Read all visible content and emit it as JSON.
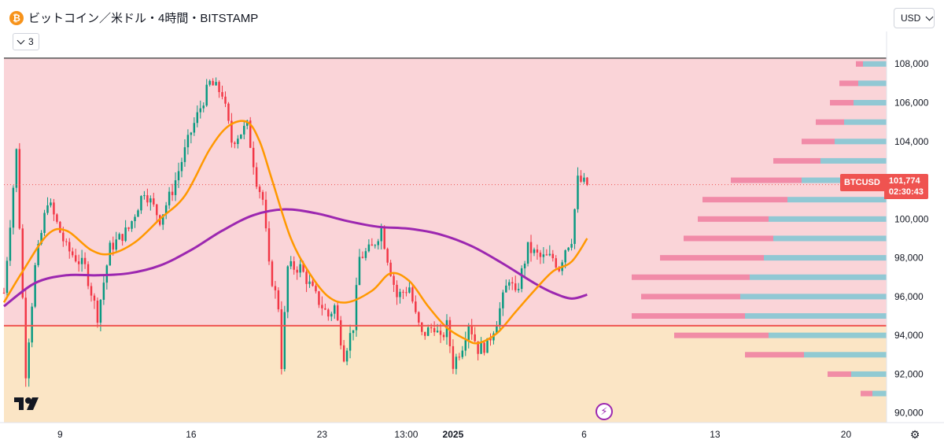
{
  "header": {
    "coin_glyph": "₿",
    "symbol_title": "ビットコイン／米ドル・4時間・BITSTAMP",
    "collapse_count": "3",
    "currency": "USD"
  },
  "price_tag": {
    "symbol": "BTCUSD",
    "price": "101,774",
    "countdown": "02:30:43"
  },
  "colors": {
    "up": "#089981",
    "down": "#f23645",
    "ema": "#ff9800",
    "ma": "#9c27b0",
    "resistance": "#ef5350",
    "zone_upper": "#fad4d8",
    "zone_lower": "#fbe5c5",
    "vp_up": "#7ec6d4",
    "vp_down": "#ef7ea0",
    "last_price": "#ef5350"
  },
  "chart_data": {
    "type": "candlestick",
    "title": "ビットコイン／米ドル・4時間・BITSTAMP",
    "ylim": [
      89500,
      108700
    ],
    "y_ticks": [
      90000,
      92000,
      94000,
      96000,
      98000,
      100000,
      102000,
      104000,
      106000,
      108000
    ],
    "y_tick_labels": [
      "90,000",
      "92,000",
      "94,000",
      "96,000",
      "98,000",
      "100,000",
      "102,000",
      "104,000",
      "106,000",
      "108,000"
    ],
    "x_ticks": [
      {
        "t": 18,
        "label": "9"
      },
      {
        "t": 60,
        "label": "16"
      },
      {
        "t": 102,
        "label": "23"
      },
      {
        "t": 129,
        "label": "13:00"
      },
      {
        "t": 144,
        "label": "2025"
      },
      {
        "t": 186,
        "label": "6"
      },
      {
        "t": 228,
        "label": "13"
      },
      {
        "t": 270,
        "label": "20"
      }
    ],
    "last_price": 101774,
    "resistance_level": 94500,
    "ceiling_level": 108300,
    "key_points": [
      {
        "t": 0,
        "price": 96200
      },
      {
        "t": 4,
        "price": 103500
      },
      {
        "t": 7,
        "price": 92100
      },
      {
        "t": 10,
        "price": 97500
      },
      {
        "t": 14,
        "price": 101000
      },
      {
        "t": 20,
        "price": 98500
      },
      {
        "t": 26,
        "price": 97500
      },
      {
        "t": 30,
        "price": 95000
      },
      {
        "t": 34,
        "price": 98500
      },
      {
        "t": 40,
        "price": 99500
      },
      {
        "t": 45,
        "price": 101500
      },
      {
        "t": 50,
        "price": 100000
      },
      {
        "t": 54,
        "price": 101500
      },
      {
        "t": 60,
        "price": 104500
      },
      {
        "t": 66,
        "price": 107000
      },
      {
        "t": 70,
        "price": 106500
      },
      {
        "t": 73,
        "price": 104000
      },
      {
        "t": 78,
        "price": 104800
      },
      {
        "t": 81,
        "price": 102000
      },
      {
        "t": 83,
        "price": 101000
      },
      {
        "t": 85,
        "price": 97500
      },
      {
        "t": 88,
        "price": 95500
      },
      {
        "t": 89,
        "price": 92500
      },
      {
        "t": 91,
        "price": 97500
      },
      {
        "t": 95,
        "price": 97500
      },
      {
        "t": 100,
        "price": 96000
      },
      {
        "t": 104,
        "price": 95000
      },
      {
        "t": 106,
        "price": 95500
      },
      {
        "t": 109,
        "price": 93000
      },
      {
        "t": 112,
        "price": 94500
      },
      {
        "t": 114,
        "price": 98000
      },
      {
        "t": 118,
        "price": 98500
      },
      {
        "t": 121,
        "price": 99500
      },
      {
        "t": 123,
        "price": 98000
      },
      {
        "t": 126,
        "price": 96000
      },
      {
        "t": 130,
        "price": 96500
      },
      {
        "t": 132,
        "price": 95000
      },
      {
        "t": 134,
        "price": 94000
      },
      {
        "t": 138,
        "price": 94500
      },
      {
        "t": 140,
        "price": 93700
      },
      {
        "t": 142,
        "price": 94500
      },
      {
        "t": 144,
        "price": 92500
      },
      {
        "t": 147,
        "price": 93500
      },
      {
        "t": 149,
        "price": 94700
      },
      {
        "t": 152,
        "price": 93300
      },
      {
        "t": 155,
        "price": 93500
      },
      {
        "t": 158,
        "price": 94800
      },
      {
        "t": 162,
        "price": 97000
      },
      {
        "t": 164,
        "price": 96000
      },
      {
        "t": 168,
        "price": 98500
      },
      {
        "t": 172,
        "price": 98000
      },
      {
        "t": 176,
        "price": 98000
      },
      {
        "t": 178,
        "price": 97500
      },
      {
        "t": 180,
        "price": 98500
      },
      {
        "t": 182,
        "price": 99000
      },
      {
        "t": 184,
        "price": 102000
      },
      {
        "t": 187,
        "price": 101774
      }
    ],
    "series": [
      {
        "name": "EMA (orange)",
        "points": [
          {
            "t": 0,
            "price": 95700
          },
          {
            "t": 6,
            "price": 97300
          },
          {
            "t": 14,
            "price": 99200
          },
          {
            "t": 20,
            "price": 99400
          },
          {
            "t": 28,
            "price": 98400
          },
          {
            "t": 34,
            "price": 98200
          },
          {
            "t": 42,
            "price": 98800
          },
          {
            "t": 50,
            "price": 100000
          },
          {
            "t": 58,
            "price": 101200
          },
          {
            "t": 66,
            "price": 103600
          },
          {
            "t": 72,
            "price": 104800
          },
          {
            "t": 78,
            "price": 105000
          },
          {
            "t": 82,
            "price": 104000
          },
          {
            "t": 86,
            "price": 102000
          },
          {
            "t": 92,
            "price": 99000
          },
          {
            "t": 98,
            "price": 97200
          },
          {
            "t": 104,
            "price": 96000
          },
          {
            "t": 110,
            "price": 95700
          },
          {
            "t": 118,
            "price": 96300
          },
          {
            "t": 124,
            "price": 97200
          },
          {
            "t": 130,
            "price": 96800
          },
          {
            "t": 136,
            "price": 95500
          },
          {
            "t": 142,
            "price": 94400
          },
          {
            "t": 148,
            "price": 93800
          },
          {
            "t": 152,
            "price": 93600
          },
          {
            "t": 158,
            "price": 94100
          },
          {
            "t": 164,
            "price": 95200
          },
          {
            "t": 170,
            "price": 96300
          },
          {
            "t": 176,
            "price": 97300
          },
          {
            "t": 182,
            "price": 97800
          },
          {
            "t": 187,
            "price": 99000
          }
        ]
      },
      {
        "name": "MA (purple)",
        "points": [
          {
            "t": 0,
            "price": 95500
          },
          {
            "t": 10,
            "price": 96700
          },
          {
            "t": 20,
            "price": 97100
          },
          {
            "t": 30,
            "price": 97100
          },
          {
            "t": 40,
            "price": 97200
          },
          {
            "t": 50,
            "price": 97600
          },
          {
            "t": 60,
            "price": 98400
          },
          {
            "t": 70,
            "price": 99400
          },
          {
            "t": 80,
            "price": 100200
          },
          {
            "t": 90,
            "price": 100500
          },
          {
            "t": 100,
            "price": 100300
          },
          {
            "t": 110,
            "price": 99900
          },
          {
            "t": 120,
            "price": 99600
          },
          {
            "t": 130,
            "price": 99500
          },
          {
            "t": 140,
            "price": 99200
          },
          {
            "t": 150,
            "price": 98600
          },
          {
            "t": 160,
            "price": 97700
          },
          {
            "t": 170,
            "price": 96700
          },
          {
            "t": 176,
            "price": 96200
          },
          {
            "t": 182,
            "price": 95900
          },
          {
            "t": 187,
            "price": 96100
          }
        ]
      }
    ],
    "volume_profile": [
      {
        "price": 108000,
        "up": 0.1,
        "down": 0.03
      },
      {
        "price": 107000,
        "up": 0.12,
        "down": 0.08
      },
      {
        "price": 106000,
        "up": 0.14,
        "down": 0.1
      },
      {
        "price": 105000,
        "up": 0.18,
        "down": 0.12
      },
      {
        "price": 104000,
        "up": 0.22,
        "down": 0.14
      },
      {
        "price": 103000,
        "up": 0.28,
        "down": 0.2
      },
      {
        "price": 102000,
        "up": 0.36,
        "down": 0.3
      },
      {
        "price": 101000,
        "up": 0.42,
        "down": 0.36
      },
      {
        "price": 100000,
        "up": 0.5,
        "down": 0.3
      },
      {
        "price": 99000,
        "up": 0.48,
        "down": 0.38
      },
      {
        "price": 98000,
        "up": 0.52,
        "down": 0.44
      },
      {
        "price": 97000,
        "up": 0.58,
        "down": 0.5
      },
      {
        "price": 96000,
        "up": 0.62,
        "down": 0.42
      },
      {
        "price": 95000,
        "up": 0.6,
        "down": 0.48
      },
      {
        "price": 94000,
        "up": 0.5,
        "down": 0.4
      },
      {
        "price": 93000,
        "up": 0.35,
        "down": 0.25
      },
      {
        "price": 92000,
        "up": 0.15,
        "down": 0.1
      },
      {
        "price": 91000,
        "up": 0.06,
        "down": 0.05
      }
    ]
  }
}
